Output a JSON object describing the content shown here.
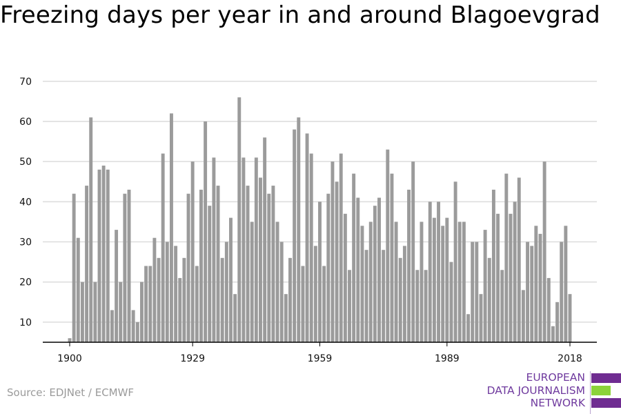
{
  "page": {
    "title": "Freezing days per year in and around Blagoevgrad",
    "source": "Source: EDJNet / ECMWF"
  },
  "logo": {
    "lines": [
      "EUROPEAN",
      "DATA JOURNALISM",
      "NETWORK"
    ],
    "text_color": "#6f3a9e",
    "bar_colors": [
      "#6f2c91",
      "#8cd33a",
      "#6f2c91"
    ]
  },
  "colors": {
    "bar": "#9b9b9b",
    "grid": "#dcdcdc",
    "axis": "#000000"
  },
  "chart_data": {
    "type": "bar",
    "title": "Freezing days per year in and around Blagoevgrad",
    "xlabel": "",
    "ylabel": "",
    "x_start": 1900,
    "x_end": 2018,
    "x_ticks": [
      1900,
      1929,
      1959,
      1989,
      2018
    ],
    "y_ticks": [
      10,
      20,
      30,
      40,
      50,
      60,
      70
    ],
    "ylim": [
      5,
      71
    ],
    "grid": true,
    "values": [
      6,
      42,
      31,
      20,
      44,
      61,
      20,
      48,
      49,
      48,
      13,
      33,
      20,
      42,
      43,
      13,
      10,
      20,
      24,
      24,
      31,
      26,
      52,
      30,
      62,
      29,
      21,
      26,
      42,
      50,
      24,
      43,
      60,
      39,
      51,
      44,
      26,
      30,
      36,
      17,
      66,
      51,
      44,
      35,
      51,
      46,
      56,
      42,
      44,
      35,
      30,
      17,
      26,
      58,
      61,
      24,
      57,
      52,
      29,
      40,
      24,
      42,
      50,
      45,
      52,
      37,
      23,
      47,
      41,
      34,
      28,
      35,
      39,
      41,
      28,
      53,
      47,
      35,
      26,
      29,
      43,
      50,
      23,
      35,
      23,
      40,
      36,
      40,
      34,
      36,
      25,
      45,
      35,
      35,
      12,
      30,
      30,
      17,
      33,
      26,
      43,
      37,
      23,
      47,
      37,
      40,
      46,
      18,
      30,
      29,
      34,
      32,
      50,
      21,
      9,
      15,
      30,
      34,
      17
    ]
  }
}
